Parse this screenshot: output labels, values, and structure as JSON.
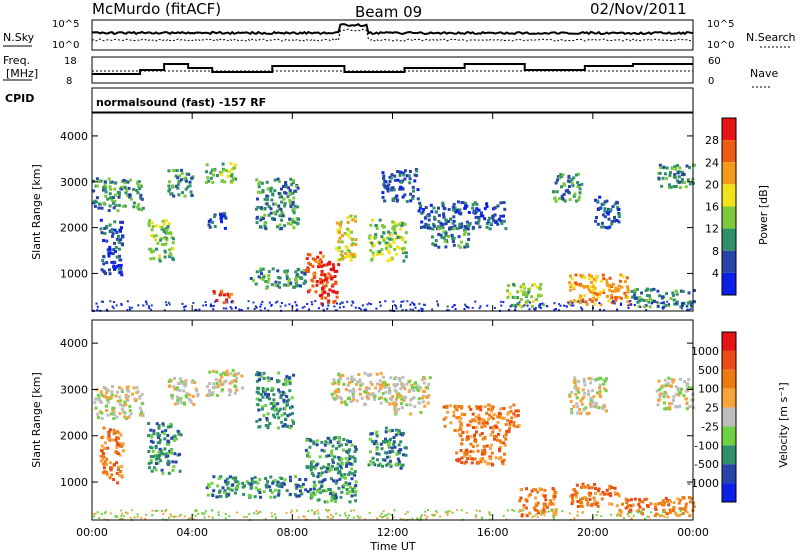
{
  "header": {
    "station": "McMurdo (fitACF)",
    "beam": "Beam 09",
    "date": "02/Nov/2011"
  },
  "status_panels": {
    "nsky_label": "N.Sky",
    "nsearch_label": "N.Search",
    "freq_label_line1": "Freq.",
    "freq_label_line2": "[MHz]",
    "nave_label": "Nave",
    "cpid_label": "CPID",
    "noise_left_ticks": [
      "10^5",
      "10^0"
    ],
    "noise_right_ticks": [
      "10^5",
      "10^0"
    ],
    "freq_ticks": [
      "18",
      "8"
    ],
    "nave_ticks": [
      "60",
      "0"
    ],
    "program": "normalsound (fast) -157 RF"
  },
  "x_axis": {
    "label": "Time UT",
    "ticks": [
      "00:00",
      "04:00",
      "08:00",
      "12:00",
      "16:00",
      "20:00",
      "00:00"
    ],
    "range_hours": [
      0,
      24
    ]
  },
  "chart_data": [
    {
      "type": "heatmap",
      "panel": "power",
      "ylabel": "Slant Range [km]",
      "ylim": [
        180,
        4500
      ],
      "yticks": [
        "1000",
        "2000",
        "3000",
        "4000"
      ],
      "colorbar": {
        "label": "Power [dB]",
        "ticks": [
          "4",
          "8",
          "12",
          "16",
          "20",
          "24",
          "28"
        ],
        "colors": [
          "#0b1fe8",
          "#2545a8",
          "#2f8f6a",
          "#7dc83a",
          "#f2e21c",
          "#f39a1a",
          "#ee5a12",
          "#e51313"
        ]
      },
      "regions": [
        {
          "t0": 0.0,
          "t1": 2.0,
          "r0": 2400,
          "r1": 3100,
          "level": 2
        },
        {
          "t0": 0.3,
          "t1": 1.2,
          "r0": 1000,
          "r1": 2200,
          "level": 1
        },
        {
          "t0": 2.2,
          "t1": 3.2,
          "r0": 1300,
          "r1": 2200,
          "level": 3
        },
        {
          "t0": 3.0,
          "t1": 4.0,
          "r0": 2700,
          "r1": 3300,
          "level": 2
        },
        {
          "t0": 4.5,
          "t1": 5.7,
          "r0": 3000,
          "r1": 3450,
          "level": 3
        },
        {
          "t0": 4.6,
          "t1": 5.3,
          "r0": 2000,
          "r1": 2400,
          "level": 1
        },
        {
          "t0": 4.8,
          "t1": 5.6,
          "r0": 380,
          "r1": 650,
          "level": 6
        },
        {
          "t0": 6.5,
          "t1": 8.2,
          "r0": 2000,
          "r1": 3100,
          "level": 2
        },
        {
          "t0": 6.3,
          "t1": 8.5,
          "r0": 700,
          "r1": 1150,
          "level": 2
        },
        {
          "t0": 8.5,
          "t1": 9.3,
          "r0": 600,
          "r1": 1500,
          "level": 6
        },
        {
          "t0": 9.0,
          "t1": 9.8,
          "r0": 350,
          "r1": 1300,
          "level": 7
        },
        {
          "t0": 9.7,
          "t1": 10.5,
          "r0": 1300,
          "r1": 2300,
          "level": 4
        },
        {
          "t0": 11.0,
          "t1": 12.5,
          "r0": 1300,
          "r1": 2200,
          "level": 3
        },
        {
          "t0": 11.5,
          "t1": 13.0,
          "r0": 2600,
          "r1": 3300,
          "level": 1
        },
        {
          "t0": 13.0,
          "t1": 16.5,
          "r0": 2000,
          "r1": 2600,
          "level": 1
        },
        {
          "t0": 13.5,
          "t1": 15.0,
          "r0": 1600,
          "r1": 2100,
          "level": 2
        },
        {
          "t0": 16.5,
          "t1": 18.0,
          "r0": 300,
          "r1": 800,
          "level": 3
        },
        {
          "t0": 18.3,
          "t1": 19.5,
          "r0": 2600,
          "r1": 3200,
          "level": 2
        },
        {
          "t0": 19.0,
          "t1": 21.5,
          "r0": 350,
          "r1": 1000,
          "level": 5
        },
        {
          "t0": 21.5,
          "t1": 24.0,
          "r0": 300,
          "r1": 700,
          "level": 2
        },
        {
          "t0": 22.5,
          "t1": 24.0,
          "r0": 2900,
          "r1": 3400,
          "level": 2
        },
        {
          "t0": 20.0,
          "t1": 21.0,
          "r0": 2000,
          "r1": 2700,
          "level": 1
        }
      ]
    },
    {
      "type": "heatmap",
      "panel": "velocity",
      "ylabel": "Slant Range [km]",
      "ylim": [
        180,
        4500
      ],
      "yticks": [
        "1000",
        "2000",
        "3000",
        "4000"
      ],
      "colorbar": {
        "label": "Velocity [m s⁻¹]",
        "ticks": [
          "1000",
          "500",
          "100",
          "25",
          "-25",
          "-100",
          "-500",
          "-1000"
        ],
        "colors": [
          "#0b1fe8",
          "#2545a8",
          "#2f8f6a",
          "#6fd141",
          "#bdbdbd",
          "#f5a33a",
          "#ee7a12",
          "#ea4a14",
          "#e51313"
        ]
      },
      "regions": [
        {
          "t0": 0.0,
          "t1": 2.0,
          "r0": 2400,
          "r1": 3100,
          "level": 4
        },
        {
          "t0": 0.3,
          "t1": 1.2,
          "r0": 1000,
          "r1": 2200,
          "level": 6
        },
        {
          "t0": 2.2,
          "t1": 3.5,
          "r0": 1200,
          "r1": 2300,
          "level": 2
        },
        {
          "t0": 3.0,
          "t1": 4.2,
          "r0": 2700,
          "r1": 3300,
          "level": 4
        },
        {
          "t0": 4.5,
          "t1": 6.0,
          "r0": 2900,
          "r1": 3450,
          "level": 4
        },
        {
          "t0": 4.5,
          "t1": 8.5,
          "r0": 700,
          "r1": 1150,
          "level": 2
        },
        {
          "t0": 6.5,
          "t1": 8.0,
          "r0": 2200,
          "r1": 3400,
          "level": 2
        },
        {
          "t0": 8.5,
          "t1": 10.5,
          "r0": 600,
          "r1": 2000,
          "level": 2
        },
        {
          "t0": 11.0,
          "t1": 12.5,
          "r0": 1300,
          "r1": 2200,
          "level": 2
        },
        {
          "t0": 12.0,
          "t1": 13.5,
          "r0": 2500,
          "r1": 3300,
          "level": 4
        },
        {
          "t0": 14.0,
          "t1": 17.0,
          "r0": 2100,
          "r1": 2700,
          "level": 6
        },
        {
          "t0": 14.5,
          "t1": 16.5,
          "r0": 1400,
          "r1": 2100,
          "level": 6
        },
        {
          "t0": 17.0,
          "t1": 18.5,
          "r0": 300,
          "r1": 900,
          "level": 6
        },
        {
          "t0": 19.0,
          "t1": 21.0,
          "r0": 500,
          "r1": 1000,
          "level": 6
        },
        {
          "t0": 21.0,
          "t1": 24.0,
          "r0": 300,
          "r1": 700,
          "level": 6
        },
        {
          "t0": 19.0,
          "t1": 20.5,
          "r0": 2500,
          "r1": 3300,
          "level": 4
        },
        {
          "t0": 22.5,
          "t1": 24.0,
          "r0": 2600,
          "r1": 3300,
          "level": 4
        },
        {
          "t0": 9.5,
          "t1": 12.0,
          "r0": 2700,
          "r1": 3400,
          "level": 4
        }
      ]
    }
  ]
}
